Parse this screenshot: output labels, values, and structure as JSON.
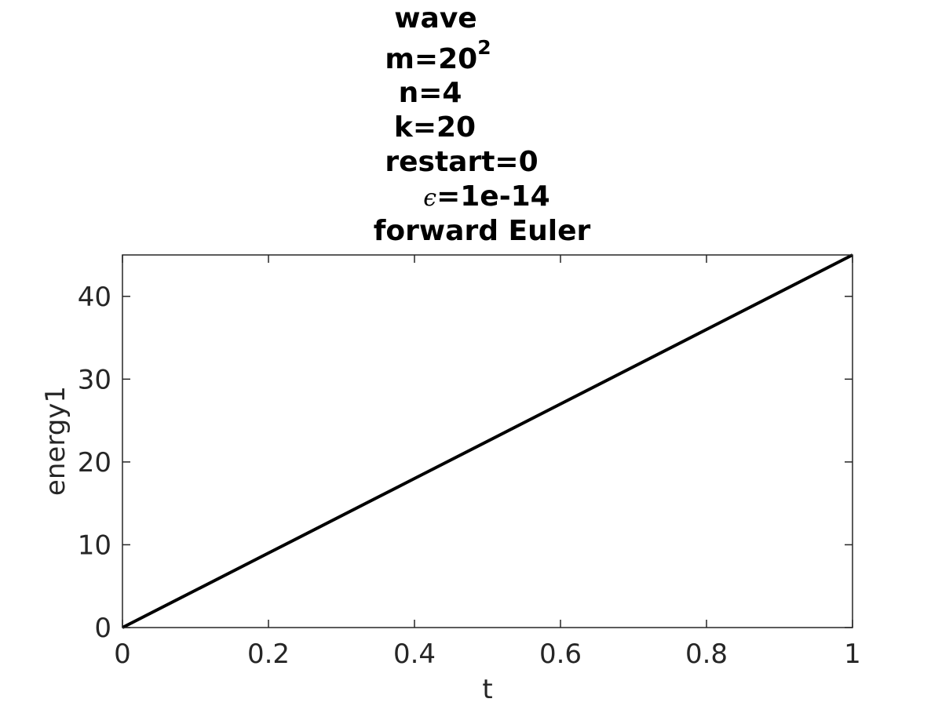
{
  "chart_data": {
    "type": "line",
    "title_lines": [
      "wave",
      "m=20",
      "n=4",
      "k=20",
      "restart=0",
      "=1e-14",
      "forward Euler"
    ],
    "title_superscript": "2",
    "title_symbol": "ϵ",
    "xlabel": "t",
    "ylabel": "energy1",
    "xlim": [
      0,
      1
    ],
    "ylim": [
      0,
      45
    ],
    "xticks": [
      0,
      0.2,
      0.4,
      0.6,
      0.8,
      1
    ],
    "xtick_labels": [
      "0",
      "0.2",
      "0.4",
      "0.6",
      "0.8",
      "1"
    ],
    "yticks": [
      0,
      10,
      20,
      30,
      40
    ],
    "ytick_labels": [
      "0",
      "10",
      "20",
      "30",
      "40"
    ],
    "grid": false,
    "series": [
      {
        "x": [
          0,
          0.2,
          0.4,
          0.6,
          0.8,
          1.0
        ],
        "y": [
          0,
          9,
          18,
          27,
          36,
          45
        ],
        "color": "#000000"
      }
    ]
  }
}
